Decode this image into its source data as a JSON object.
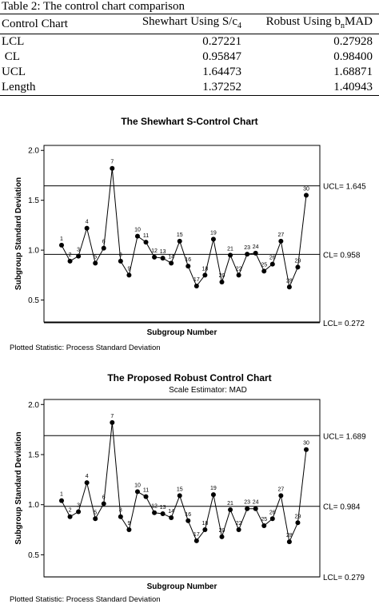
{
  "table": {
    "caption": "Table 2: The control chart comparison",
    "headers": [
      "Control Chart",
      "Shewhart Using S/c",
      "Robust Using b",
      "MAD"
    ],
    "header_subscripts": [
      "4",
      "n"
    ],
    "rows": [
      {
        "label": "LCL",
        "shewhart": "0.27221",
        "robust": "0.27928"
      },
      {
        "label": " CL",
        "shewhart": "0.95847",
        "robust": "0.98400"
      },
      {
        "label": "UCL",
        "shewhart": "1.64473",
        "robust": "1.68871"
      },
      {
        "label": "Length",
        "shewhart": "1.37252",
        "robust": "1.40943"
      }
    ]
  },
  "chart_data": [
    {
      "type": "line",
      "title": "The Shewhart  S-Control Chart",
      "subtitle": "",
      "xlabel": "Subgroup Number",
      "ylabel": "Subgroup Standard Deviation",
      "ylim": [
        0.28,
        2.05
      ],
      "yticks": [
        "2.0",
        "1.5",
        "1.0",
        "0.5"
      ],
      "x": [
        1,
        2,
        3,
        4,
        5,
        6,
        7,
        8,
        9,
        10,
        11,
        12,
        13,
        14,
        15,
        16,
        17,
        18,
        19,
        20,
        21,
        22,
        23,
        24,
        25,
        26,
        27,
        28,
        29,
        30
      ],
      "point_labels": [
        "1",
        "2",
        "3",
        "4",
        "5",
        "6",
        "7",
        "8",
        "9",
        "10",
        "11",
        "12",
        "13",
        "14",
        "15",
        "16",
        "17",
        "18",
        "19",
        "20",
        "21",
        "22",
        "23",
        "24",
        "25",
        "26",
        "27",
        "28",
        "29",
        "30"
      ],
      "series": [
        {
          "values": [
            1.05,
            0.89,
            0.94,
            1.22,
            0.87,
            1.02,
            1.82,
            0.89,
            0.75,
            1.14,
            1.08,
            0.93,
            0.92,
            0.87,
            1.09,
            0.84,
            0.64,
            0.75,
            1.11,
            0.68,
            0.95,
            0.75,
            0.96,
            0.97,
            0.79,
            0.86,
            1.09,
            0.63,
            0.83,
            1.55
          ]
        }
      ],
      "ucl": 1.645,
      "cl": 0.958,
      "lcl": 0.272,
      "ucl_label": "UCL= 1.645",
      "cl_label": "CL= 0.958",
      "lcl_label": "LCL= 0.272",
      "footnote": "Plotted Statistic: Process Standard Deviation"
    },
    {
      "type": "line",
      "title": "The Proposed Robust Control Chart",
      "subtitle": "Scale Estimator: MAD",
      "xlabel": "Subgroup Number",
      "ylabel": "Subgroup Standard Deviation",
      "ylim": [
        0.28,
        2.05
      ],
      "yticks": [
        "2.0",
        "1.5",
        "1.0",
        "0.5"
      ],
      "x": [
        1,
        2,
        3,
        4,
        5,
        6,
        7,
        8,
        9,
        10,
        11,
        12,
        13,
        14,
        15,
        16,
        17,
        18,
        19,
        20,
        21,
        22,
        23,
        24,
        25,
        26,
        27,
        28,
        29,
        30
      ],
      "point_labels": [
        "1",
        "2",
        "3",
        "4",
        "5",
        "6",
        "7",
        "8",
        "9",
        "10",
        "11",
        "12",
        "13",
        "14",
        "15",
        "16",
        "17",
        "18",
        "19",
        "20",
        "21",
        "22",
        "23",
        "24",
        "25",
        "26",
        "27",
        "28",
        "29",
        "30"
      ],
      "series": [
        {
          "values": [
            1.04,
            0.88,
            0.93,
            1.22,
            0.86,
            1.01,
            1.82,
            0.88,
            0.75,
            1.13,
            1.08,
            0.92,
            0.91,
            0.87,
            1.09,
            0.84,
            0.64,
            0.75,
            1.1,
            0.68,
            0.95,
            0.75,
            0.96,
            0.96,
            0.79,
            0.86,
            1.09,
            0.63,
            0.82,
            1.55
          ]
        }
      ],
      "ucl": 1.689,
      "cl": 0.984,
      "lcl": 0.279,
      "ucl_label": "UCL= 1.689",
      "cl_label": "CL= 0.984",
      "lcl_label": "LCL= 0.279",
      "footnote": "Plotted Statistic: Process Standard Deviation"
    }
  ]
}
